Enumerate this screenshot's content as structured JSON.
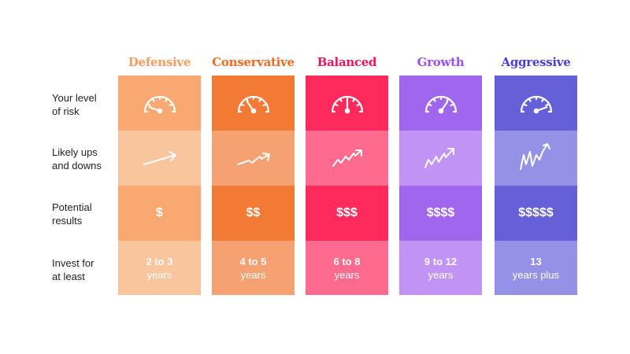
{
  "row_labels": [
    "Your level\nof risk",
    "Likely ups\nand downs",
    "Potential\nresults",
    "Invest for\nat least"
  ],
  "profiles": [
    {
      "name": "Defensive",
      "heading_color": "#f59d62",
      "dark": "#f8a870",
      "light": "#f9c59d",
      "risk_level": 1,
      "results": "$",
      "invest_main": "2 to 3",
      "invest_sub": "years",
      "icon": "trend-arrow-flat"
    },
    {
      "name": "Conservative",
      "heading_color": "#f06a22",
      "dark": "#f27a34",
      "light": "#f5a172",
      "risk_level": 2,
      "results": "$$",
      "invest_main": "4 to 5",
      "invest_sub": "years",
      "icon": "trend-arrow-small-zigzag"
    },
    {
      "name": "Balanced",
      "heading_color": "#ee1556",
      "dark": "#ff2a5c",
      "light": "#ff6b8f",
      "risk_level": 3,
      "results": "$$$",
      "invest_main": "6 to 8",
      "invest_sub": "years",
      "icon": "trend-arrow-zigzag"
    },
    {
      "name": "Growth",
      "heading_color": "#9b4ff0",
      "dark": "#a066ee",
      "light": "#c193f5",
      "risk_level": 4,
      "results": "$$$$",
      "invest_main": "9 to 12",
      "invest_sub": "years",
      "icon": "trend-arrow-large-zigzag"
    },
    {
      "name": "Aggressive",
      "heading_color": "#4a40d6",
      "dark": "#6660d8",
      "light": "#9591e6",
      "risk_level": 5,
      "results": "$$$$$",
      "invest_main": "13",
      "invest_sub": "years plus",
      "icon": "trend-arrow-volatile"
    }
  ]
}
